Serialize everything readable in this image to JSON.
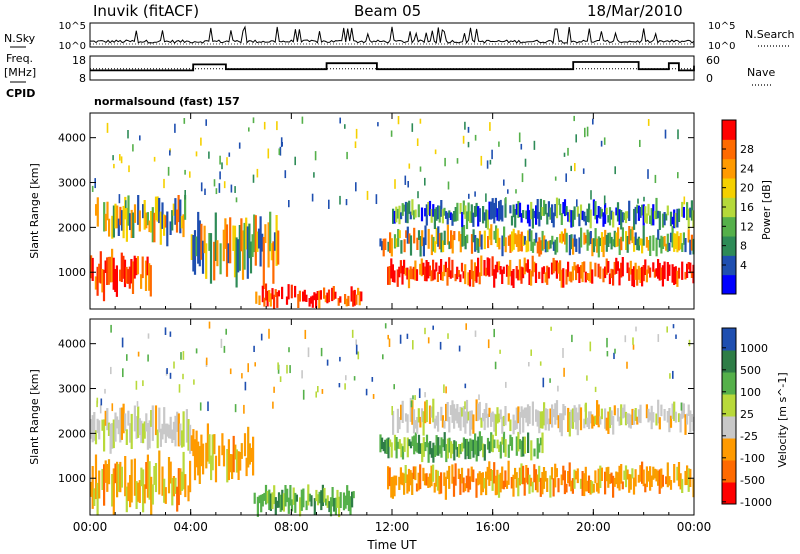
{
  "header": {
    "station": "Inuvik (fitACF)",
    "beam": "Beam 05",
    "date": "18/Mar/2010"
  },
  "left_labels": {
    "nsky": "N.Sky",
    "freq": "Freq.",
    "mhz": "[MHz]",
    "cpid": "CPID"
  },
  "right_labels": {
    "nsearch": "N.Search",
    "nave": "Nave"
  },
  "cpid_text": "normalsound (fast) 157",
  "colors": {
    "power": [
      "#0000ff",
      "#1f4fb0",
      "#2e8b57",
      "#55b04a",
      "#b5d93a",
      "#f5d000",
      "#ff9a00",
      "#ff6a00",
      "#ff0000"
    ],
    "velocity": [
      "#ff0000",
      "#ff6a00",
      "#ff9a00",
      "#c8c8c8",
      "#b8d93a",
      "#55b04a",
      "#2e7d46",
      "#1f4fb0"
    ]
  },
  "chart_data": [
    {
      "type": "line",
      "title": "N.Sky / N.Search",
      "yticks": [
        "10^5",
        "10^0"
      ],
      "yticks_right": [
        "10^5",
        "10^0"
      ],
      "legend": [
        "N.Sky",
        "N.Search"
      ]
    },
    {
      "type": "line",
      "xlabel": "",
      "yticks": [
        "18",
        "8"
      ],
      "yticks_right": [
        "60",
        "0"
      ],
      "series": [
        {
          "name": "Freq.",
          "x": [
            0,
            3.8,
            4.1,
            5.0,
            5.4,
            9.0,
            9.4,
            11.0,
            11.4,
            16.0,
            18.9,
            19.2,
            21.5,
            21.8,
            22.6,
            23.0,
            23.4,
            24.0
          ],
          "values": [
            12,
            12,
            14.5,
            14.5,
            12.5,
            12.5,
            15,
            15,
            12.5,
            12.5,
            12.5,
            15.5,
            15.5,
            12.5,
            12.5,
            15,
            12,
            14
          ]
        },
        {
          "name": "Nave",
          "x": [
            0,
            24
          ],
          "values": [
            28,
            28
          ]
        }
      ]
    },
    {
      "type": "heatmap",
      "ylabel": "Slant Range [km]",
      "ylim": [
        180,
        4550
      ],
      "yticks": [
        1000,
        2000,
        3000,
        4000
      ],
      "xlim": [
        0,
        24
      ],
      "colorbar_label": "Power [dB]",
      "colorbar_ticks": [
        "4",
        "8",
        "12",
        "16",
        "20",
        "24",
        "28"
      ],
      "bands": [
        {
          "x": [
            0,
            2.5
          ],
          "y": [
            450,
            1400
          ],
          "value": "high"
        },
        {
          "x": [
            0.2,
            3.8
          ],
          "y": [
            1700,
            2700
          ],
          "value": "medium"
        },
        {
          "x": [
            4.0,
            7.5
          ],
          "y": [
            800,
            2300
          ],
          "value": "medium"
        },
        {
          "x": [
            6.5,
            10.8
          ],
          "y": [
            200,
            700
          ],
          "value": "high"
        },
        {
          "x": [
            11.8,
            24
          ],
          "y": [
            700,
            1300
          ],
          "value": "high"
        },
        {
          "x": [
            11.5,
            24
          ],
          "y": [
            1400,
            2000
          ],
          "value": "medium"
        },
        {
          "x": [
            12,
            24
          ],
          "y": [
            2000,
            2600
          ],
          "value": "low"
        }
      ]
    },
    {
      "type": "heatmap",
      "ylabel": "Slant Range [km]",
      "xlabel": "Time UT",
      "ylim": [
        180,
        4550
      ],
      "yticks": [
        1000,
        2000,
        3000,
        4000
      ],
      "xlim": [
        0,
        24
      ],
      "xticks": [
        "00:00",
        "04:00",
        "08:00",
        "12:00",
        "16:00",
        "20:00",
        "00:00"
      ],
      "colorbar_label": "Velocity [m s^-1]",
      "colorbar_ticks": [
        "1000",
        "500",
        "100",
        "25",
        "-25",
        "-100",
        "-500",
        "-1000"
      ],
      "bands": [
        {
          "x": [
            0,
            4
          ],
          "y": [
            200,
            1500
          ],
          "value": "negative"
        },
        {
          "x": [
            0,
            4
          ],
          "y": [
            1600,
            2600
          ],
          "value": "near-zero"
        },
        {
          "x": [
            4,
            6.5
          ],
          "y": [
            900,
            2100
          ],
          "value": "negative"
        },
        {
          "x": [
            6.5,
            10.5
          ],
          "y": [
            200,
            800
          ],
          "value": "positive"
        },
        {
          "x": [
            11.8,
            24
          ],
          "y": [
            600,
            1300
          ],
          "value": "negative"
        },
        {
          "x": [
            11.5,
            18
          ],
          "y": [
            1400,
            2000
          ],
          "value": "positive"
        },
        {
          "x": [
            12,
            24
          ],
          "y": [
            2000,
            2700
          ],
          "value": "near-zero"
        }
      ]
    }
  ]
}
